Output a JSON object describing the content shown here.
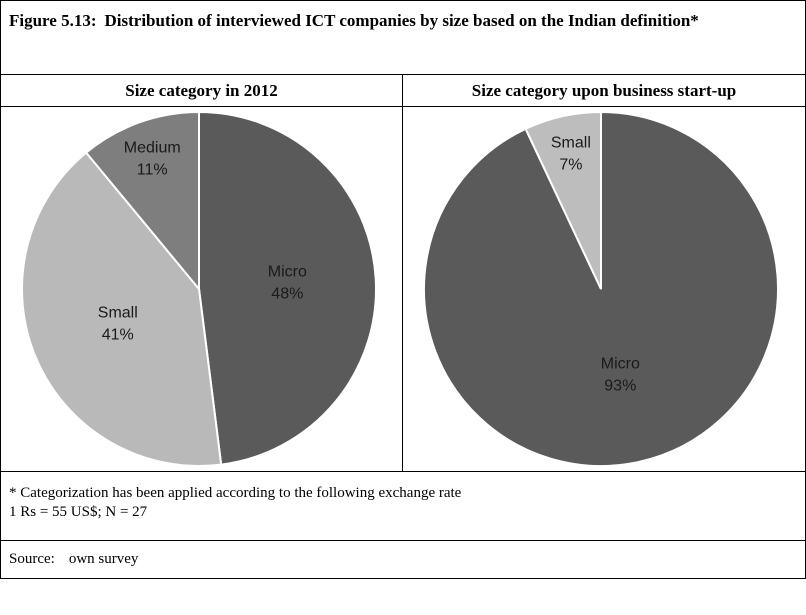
{
  "figure_label": "Figure 5.13:",
  "figure_title": "Distribution of interviewed ICT companies by size based on the Indian definition*",
  "note": [
    "* Categorization has been applied according to the following exchange rate",
    "1 Rs = 55 US$; N = 27"
  ],
  "source_label": "Source:",
  "source": "own survey",
  "chart_data": [
    {
      "type": "pie",
      "title": "Size category in 2012",
      "categories": [
        "Micro",
        "Small",
        "Medium"
      ],
      "values": [
        48,
        41,
        11
      ],
      "value_labels": [
        "48%",
        "41%",
        "11%"
      ],
      "colors": [
        "#5a5a5a",
        "#b9b9b9",
        "#7e7e7e"
      ]
    },
    {
      "type": "pie",
      "title": "Size category upon business start-up",
      "categories": [
        "Micro",
        "Small"
      ],
      "values": [
        93,
        7
      ],
      "value_labels": [
        "93%",
        "7%"
      ],
      "colors": [
        "#5a5a5a",
        "#bdbdbd"
      ]
    }
  ]
}
